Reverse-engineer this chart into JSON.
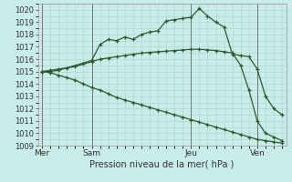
{
  "xlabel": "Pression niveau de la mer( hPa )",
  "ylim": [
    1009,
    1020.5
  ],
  "background_color": "#c8ece8",
  "grid_color": "#a8d4cc",
  "line_color": "#2d5a2d",
  "day_labels": [
    "Mer",
    "Sam",
    "Jeu",
    "Ven"
  ],
  "day_positions": [
    0,
    6,
    18,
    26
  ],
  "vline_positions": [
    0,
    6,
    18,
    26
  ],
  "series1_x": [
    0,
    1,
    2,
    6,
    7,
    8,
    9,
    10,
    11,
    12,
    13,
    14,
    15,
    16,
    17,
    18,
    19,
    20,
    21,
    22,
    23,
    24,
    25,
    26,
    27,
    28,
    29
  ],
  "series1_y": [
    1015.0,
    1015.0,
    1015.1,
    1015.9,
    1017.2,
    1017.6,
    1017.5,
    1017.8,
    1017.6,
    1018.0,
    1018.2,
    1018.3,
    1019.1,
    1019.2,
    1019.3,
    1019.4,
    1020.1,
    1019.5,
    1019.0,
    1018.6,
    1016.4,
    1016.3,
    1016.2,
    1015.2,
    1013.0,
    1012.0,
    1011.5
  ],
  "series2_x": [
    0,
    1,
    2,
    3,
    4,
    5,
    6,
    7,
    8,
    9,
    10,
    11,
    12,
    13,
    14,
    15,
    16,
    17,
    18,
    19,
    20,
    21,
    22,
    23,
    24,
    25,
    26,
    27,
    28,
    29
  ],
  "series2_y": [
    1015.0,
    1015.1,
    1015.2,
    1015.3,
    1015.4,
    1015.6,
    1015.8,
    1016.0,
    1016.1,
    1016.2,
    1016.3,
    1016.4,
    1016.5,
    1016.55,
    1016.6,
    1016.65,
    1016.7,
    1016.75,
    1016.8,
    1016.8,
    1016.75,
    1016.7,
    1016.6,
    1016.5,
    1015.5,
    1013.5,
    1011.0,
    1010.0,
    1009.7,
    1009.4
  ],
  "series3_x": [
    0,
    1,
    2,
    3,
    4,
    5,
    6,
    7,
    8,
    9,
    10,
    11,
    12,
    13,
    14,
    15,
    16,
    17,
    18,
    19,
    20,
    21,
    22,
    23,
    24,
    25,
    26,
    27,
    28,
    29
  ],
  "series3_y": [
    1015.0,
    1014.9,
    1014.7,
    1014.5,
    1014.3,
    1014.0,
    1013.7,
    1013.5,
    1013.2,
    1012.9,
    1012.7,
    1012.5,
    1012.3,
    1012.1,
    1011.9,
    1011.7,
    1011.5,
    1011.3,
    1011.1,
    1010.9,
    1010.7,
    1010.5,
    1010.3,
    1010.1,
    1009.9,
    1009.7,
    1009.5,
    1009.4,
    1009.3,
    1009.2
  ]
}
